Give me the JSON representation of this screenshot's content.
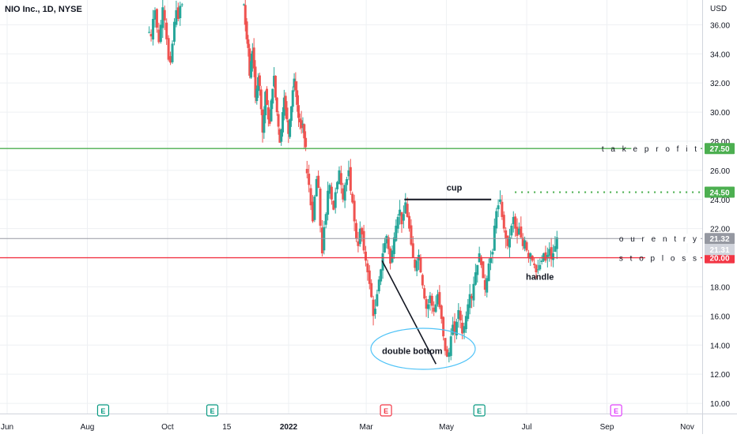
{
  "header": {
    "title": "NIO Inc., 1D, NYSE",
    "currency": "USD"
  },
  "colors": {
    "up": "#26a69a",
    "down": "#ef5350",
    "green_line": "#4caf50",
    "red_line": "#f23645",
    "entry_line": "#9598a1",
    "ellipse": "#4fc3f7"
  },
  "chart_data": {
    "type": "candlestick",
    "title": "NIO Inc., 1D, NYSE",
    "yunit": "USD",
    "ylim": [
      9.3,
      37.7
    ],
    "yticks": [
      "10.00",
      "12.00",
      "14.00",
      "16.00",
      "18.00",
      "20.00",
      "22.00",
      "24.00",
      "26.00",
      "28.00",
      "30.00",
      "32.00",
      "34.00",
      "36.00"
    ],
    "xticks": [
      "Jun",
      "Aug",
      "Oct",
      "15",
      "2022",
      "Mar",
      "May",
      "Jul",
      "Sep",
      "Nov"
    ],
    "xlim_days": [
      0,
      520
    ],
    "xtick_days": [
      0,
      61,
      122,
      167,
      214,
      273,
      334,
      395,
      456,
      517
    ],
    "grid": true,
    "levels": [
      {
        "name": "takeprofit",
        "label": "t a k e p r o f i t",
        "value": 27.5,
        "badge": "27.50",
        "color": "#4caf50",
        "style": "solid",
        "full": true
      },
      {
        "name": "target",
        "label": "",
        "value": 24.5,
        "badge": "24.50",
        "color": "#4caf50",
        "style": "dotted",
        "full": false,
        "from_day": 386
      },
      {
        "name": "our-entry",
        "label": "o u r  e n t r y",
        "value": 21.32,
        "badge": "21.32",
        "color": "#9598a1",
        "style": "solid",
        "full": true
      },
      {
        "name": "stoploss",
        "label": "s t o p l o s s",
        "value": 20.0,
        "badge": "20.00",
        "color": "#f23645",
        "style": "solid",
        "full": true
      }
    ],
    "last_price": "21.31",
    "annotations": [
      {
        "text": "cup",
        "day": 340,
        "value": 24.6
      },
      {
        "text": "handle",
        "day": 405,
        "value": 18.5
      },
      {
        "text": "double bottom",
        "day": 308,
        "value": 13.4
      }
    ],
    "cup_line": {
      "from_day": 302,
      "to_day": 368,
      "value": 24.0
    },
    "diagonal_line": {
      "from_day": 285,
      "from_value": 19.8,
      "to_day": 326,
      "to_value": 12.7
    },
    "earnings": [
      {
        "day": 73,
        "letter": "E",
        "kind": "past"
      },
      {
        "day": 156,
        "letter": "E",
        "kind": "past"
      },
      {
        "day": 288,
        "letter": "E",
        "kind": "negative"
      },
      {
        "day": 359,
        "letter": "E",
        "kind": "past"
      },
      {
        "day": 463,
        "letter": "E",
        "kind": "upcoming"
      }
    ],
    "segments": [
      {
        "from_day": 108,
        "to_day": 133,
        "values": [
          35.5,
          35.2,
          36.4,
          37.0,
          35.8,
          34.8,
          36.0,
          37.2,
          36.3,
          35.0,
          33.6,
          33.4,
          34.7,
          36.2,
          37.0,
          36.4,
          37.3,
          37.4
        ]
      },
      {
        "from_day": 180,
        "to_day": 227,
        "values": [
          37.4,
          36.0,
          35.0,
          34.4,
          32.5,
          33.5,
          34.2,
          33.0,
          31.0,
          31.6,
          32.4,
          31.8,
          30.2,
          28.6,
          29.8,
          31.4,
          30.5,
          29.5,
          29.2,
          30.8,
          31.6,
          32.5,
          31.0,
          30.0,
          29.0,
          27.9,
          28.8,
          30.0,
          31.0,
          30.2,
          29.5,
          28.5,
          29.5,
          30.4,
          31.5,
          32.3,
          31.5,
          30.5,
          29.6,
          29.3,
          28.9,
          29.2,
          28.2,
          27.6
        ]
      },
      {
        "from_day": 228,
        "to_day": 418,
        "values": [
          25.8,
          25.0,
          23.6,
          22.5,
          24.2,
          25.4,
          24.8,
          22.2,
          20.3,
          22.1,
          23.0,
          24.6,
          25.0,
          24.0,
          23.3,
          24.5,
          25.2,
          26.0,
          25.0,
          24.0,
          25.0,
          25.4,
          26.0,
          24.6,
          23.8,
          22.5,
          21.3,
          20.8,
          22.0,
          21.6,
          20.5,
          19.8,
          19.0,
          18.2,
          17.3,
          16.0,
          16.5,
          17.5,
          18.5,
          19.2,
          20.3,
          21.0,
          21.5,
          20.6,
          19.6,
          20.5,
          21.4,
          22.2,
          22.8,
          23.3,
          22.3,
          23.0,
          23.8,
          22.8,
          22.0,
          20.9,
          20.0,
          19.3,
          19.8,
          20.2,
          19.0,
          18.1,
          17.2,
          16.5,
          16.8,
          17.4,
          16.7,
          16.3,
          16.8,
          17.5,
          16.6,
          15.8,
          14.6,
          13.6,
          13.2,
          13.5,
          14.6,
          15.4,
          14.8,
          15.6,
          16.4,
          15.7,
          14.8,
          15.3,
          16.0,
          16.8,
          17.5,
          17.2,
          18.2,
          19.0,
          19.5,
          20.3,
          19.5,
          18.6,
          17.8,
          18.6,
          19.6,
          20.0,
          20.4,
          22.2,
          23.2,
          23.6,
          24.0,
          22.8,
          22.0,
          21.3,
          20.8,
          21.4,
          22.2,
          22.8,
          22.0,
          21.5,
          22.0,
          21.4,
          20.8,
          21.2,
          20.5,
          20.0,
          20.3,
          19.8,
          19.5,
          19.0,
          19.2,
          19.5,
          19.8,
          20.3,
          19.8,
          20.2,
          20.6,
          19.9,
          20.3,
          20.8,
          21.4
        ]
      }
    ]
  }
}
